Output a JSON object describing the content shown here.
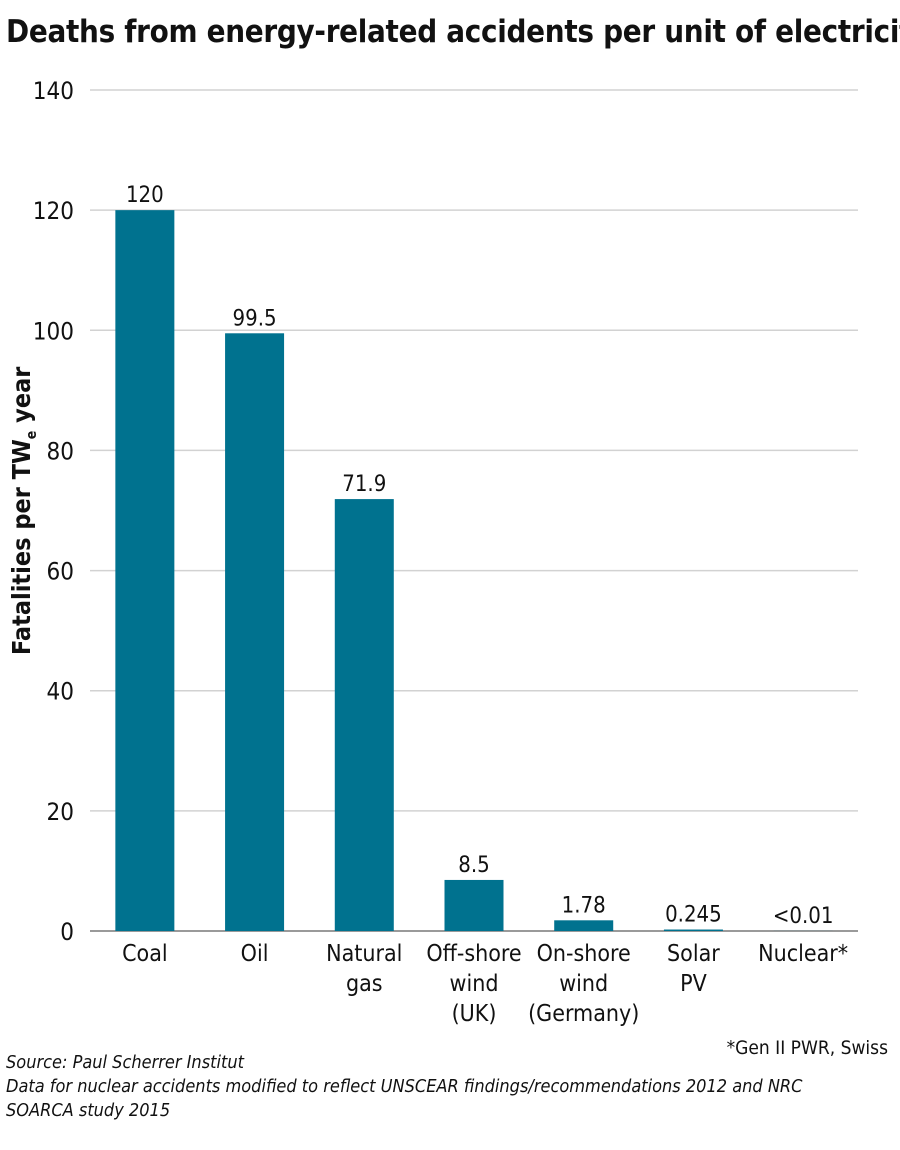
{
  "chart_data": {
    "type": "bar",
    "title": "Deaths from energy-related accidents per unit of electricity",
    "ylabel": "Fatalities per TW",
    "ylabel_subscript": "e",
    "ylabel_suffix": " year",
    "xlabel": "",
    "ylim": [
      0,
      140
    ],
    "yticks": [
      0,
      20,
      40,
      60,
      80,
      100,
      120,
      140
    ],
    "grid": true,
    "bar_color": "#00728f",
    "categories": [
      [
        "Coal"
      ],
      [
        "Oil"
      ],
      [
        "Natural",
        "gas"
      ],
      [
        "Off-shore",
        "wind",
        "(UK)"
      ],
      [
        "On-shore",
        "wind",
        "(Germany)"
      ],
      [
        "Solar",
        "PV"
      ],
      [
        "Nuclear*"
      ]
    ],
    "values": [
      120,
      99.5,
      71.9,
      8.5,
      1.78,
      0.245,
      0.01
    ],
    "data_labels": [
      "120",
      "99.5",
      "71.9",
      "8.5",
      "1.78",
      "0.245",
      "<0.01"
    ]
  },
  "footnote": "*Gen II PWR, Swiss",
  "source": {
    "line1": "Source: Paul Scherrer Institut",
    "line2": "Data for nuclear accidents modified to reflect UNSCEAR findings/recommendations 2012 and NRC",
    "line3": "SOARCA study 2015"
  }
}
